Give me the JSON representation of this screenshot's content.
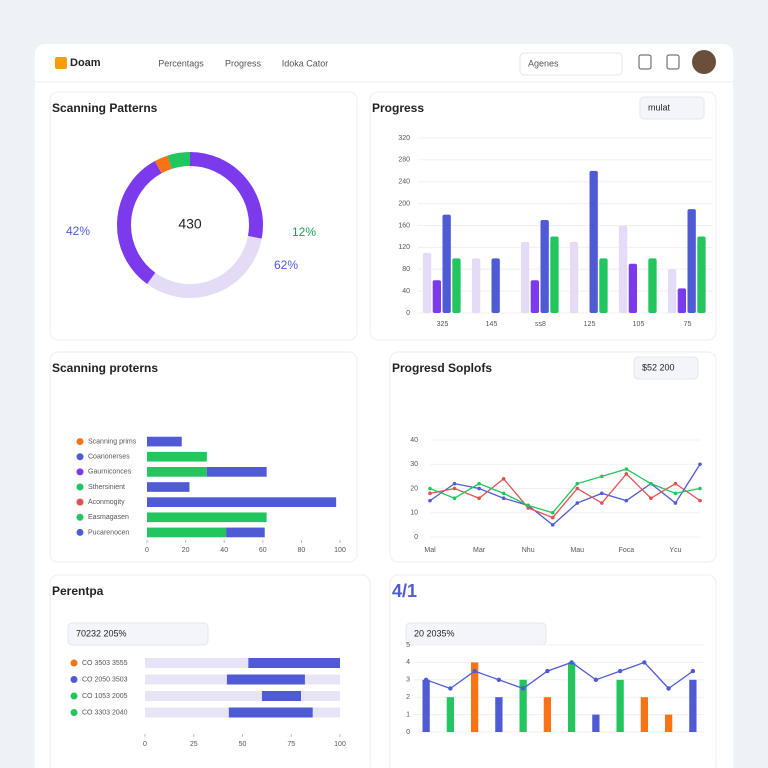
{
  "header": {
    "brand": "Doam",
    "nav": [
      "Percentags",
      "Progress",
      "Idoka Cator"
    ],
    "search": "Agenes"
  },
  "cards": [
    {
      "title": "Scanning Patterns",
      "chart_data": {
        "type": "donut",
        "center_label": "430",
        "values": [
          28,
          32,
          32,
          3,
          5
        ],
        "colors": [
          "#7c3aed",
          "#e4dcf7",
          "#7c3aed",
          "#f97316",
          "#22c55e"
        ],
        "annotations": [
          "42%",
          "12%",
          "62%"
        ]
      }
    },
    {
      "title": "Progress",
      "button": "mulat",
      "chart_data": {
        "type": "bar",
        "categories": [
          "325",
          "145",
          "ss8",
          "125",
          "105",
          "75"
        ],
        "series": [
          {
            "color": "#e4dcf7",
            "values": [
              110,
              100,
              130,
              130,
              160,
              80
            ]
          },
          {
            "color": "#7c3aed",
            "values": [
              60,
              0,
              60,
              0,
              90,
              45
            ]
          },
          {
            "color": "#4f5bd5",
            "values": [
              180,
              100,
              170,
              260,
              0,
              190
            ]
          },
          {
            "color": "#22c55e",
            "values": [
              100,
              0,
              140,
              100,
              100,
              140
            ]
          }
        ],
        "ylim": [
          0,
          320
        ],
        "yticks": [
          0,
          40,
          80,
          120,
          160,
          200,
          240,
          280,
          320
        ]
      }
    },
    {
      "title": "Scanning proterns",
      "chart_data": {
        "type": "hbar_stacked",
        "categories": [
          "Scanning prims",
          "Coanonerses",
          "Gaurniconces",
          "Sthersinient",
          "Aconmogity",
          "Easmagasen",
          "Pucarenocen"
        ],
        "series": [
          {
            "color": "#22c55e",
            "values": [
              0,
              31,
              31,
              0,
              0,
              62,
              41
            ]
          },
          {
            "color": "#4f5bd5",
            "values": [
              18,
              0,
              31,
              22,
              98,
              0,
              20
            ]
          }
        ],
        "xlim": [
          0,
          100
        ],
        "xticks": [
          0,
          20,
          40,
          60,
          80,
          100
        ]
      }
    },
    {
      "title": "Progresd Soplofs",
      "button": "$52 200",
      "chart_data": {
        "type": "line",
        "categories": [
          "Mal",
          null,
          "Mar",
          null,
          "Nhu",
          null,
          "Mau",
          null,
          "Foca",
          null,
          "Ycu",
          null
        ],
        "series": [
          {
            "color": "#4f5bd5",
            "values": [
              15,
              22,
              20,
              16,
              13,
              5,
              14,
              18,
              15,
              22,
              14,
              30
            ]
          },
          {
            "color": "#e05252",
            "values": [
              18,
              20,
              16,
              24,
              12,
              8,
              20,
              14,
              26,
              16,
              22,
              15
            ]
          },
          {
            "color": "#22c55e",
            "values": [
              20,
              16,
              22,
              18,
              13,
              10,
              22,
              25,
              28,
              22,
              18,
              20
            ]
          }
        ],
        "ylim": [
          0,
          40
        ],
        "yticks": [
          0,
          10,
          20,
          30,
          40
        ]
      }
    },
    {
      "title": "Perentpa",
      "button": "70232 205%",
      "chart_data": {
        "type": "hbar_range",
        "categories": [
          "CO 3503 3555",
          "CO 2050 3503",
          "CO 1053 2005",
          "CO 3303 2040"
        ],
        "starts": [
          53,
          42,
          60,
          43
        ],
        "ends": [
          100,
          82,
          80,
          86
        ],
        "color": "#4f5bd5",
        "xlim": [
          0,
          100
        ],
        "xticks": [
          0,
          25,
          50,
          75,
          100
        ]
      }
    },
    {
      "title": "4/1",
      "button": "20 2035%",
      "chart_data": {
        "type": "combo",
        "bar_values": [
          3,
          2,
          4,
          2,
          3,
          2,
          4,
          1,
          3,
          2,
          1,
          3
        ],
        "bar_colors": [
          "#4f5bd5",
          "#22c55e",
          "#f97316",
          "#4f5bd5",
          "#22c55e",
          "#f97316",
          "#22c55e",
          "#4f5bd5",
          "#22c55e",
          "#f97316",
          "#f97316",
          "#4f5bd5"
        ],
        "line_values": [
          3,
          2.5,
          3.5,
          3,
          2.5,
          3.5,
          4,
          3,
          3.5,
          4,
          2.5,
          3.5
        ],
        "line_color": "#4f5bd5",
        "ylim": [
          0,
          5
        ],
        "yticks": [
          0,
          1,
          2,
          3,
          4,
          5
        ]
      }
    }
  ]
}
